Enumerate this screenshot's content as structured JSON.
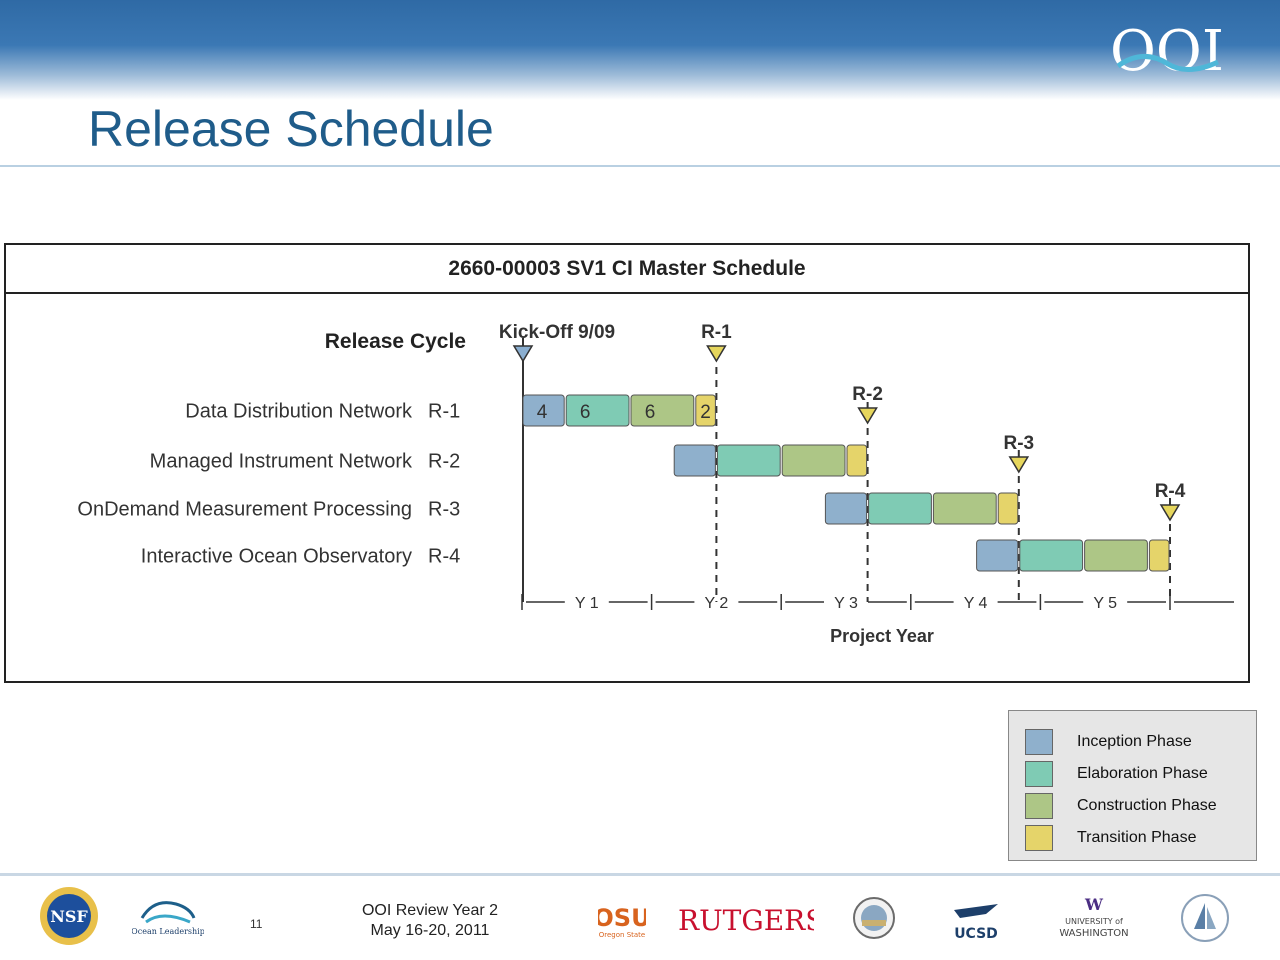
{
  "slide": {
    "title": "Release Schedule",
    "page_number": "11",
    "footer_line1": "OOI Review Year 2",
    "footer_line2": "May 16-20, 2011"
  },
  "logos": {
    "ooi": "OOI",
    "nsf": "NSF",
    "ocean_leadership": "Ocean Leadership",
    "osu": "OSU",
    "osu_sub": "Oregon State",
    "rutgers": "RUTGERS",
    "ucsd": "UCSD",
    "uw_w": "W",
    "uw_line1": "UNIVERSITY of",
    "uw_line2": "WASHINGTON"
  },
  "chart_data": {
    "type": "gantt",
    "title": "2660-00003 SV1 CI Master Schedule",
    "row_header": "Release Cycle",
    "xlabel": "Project Year",
    "years": [
      "Y 1",
      "Y 2",
      "Y 3",
      "Y 4",
      "Y 5"
    ],
    "milestones": [
      {
        "label": "Kick-Off 9/09",
        "color": "#8aaed0"
      },
      {
        "label": "R-1",
        "color": "#e6d65c"
      },
      {
        "label": "R-2",
        "color": "#e6d65c"
      },
      {
        "label": "R-3",
        "color": "#e6d65c"
      },
      {
        "label": "R-4",
        "color": "#e6d65c"
      }
    ],
    "rows": [
      {
        "name": "Data Distribution Network",
        "release": "R-1",
        "phases": [
          {
            "phase": "Inception",
            "months": 4,
            "label": "4"
          },
          {
            "phase": "Elaboration",
            "months": 6,
            "label": "6"
          },
          {
            "phase": "Construction",
            "months": 6,
            "label": "6"
          },
          {
            "phase": "Transition",
            "months": 2,
            "label": "2"
          }
        ]
      },
      {
        "name": "Managed Instrument Network",
        "release": "R-2",
        "phases": [
          {
            "phase": "Inception",
            "months": 4,
            "label": ""
          },
          {
            "phase": "Elaboration",
            "months": 6,
            "label": ""
          },
          {
            "phase": "Construction",
            "months": 6,
            "label": ""
          },
          {
            "phase": "Transition",
            "months": 2,
            "label": ""
          }
        ]
      },
      {
        "name": "OnDemand Measurement Processing",
        "release": "R-3",
        "phases": [
          {
            "phase": "Inception",
            "months": 4,
            "label": ""
          },
          {
            "phase": "Elaboration",
            "months": 6,
            "label": ""
          },
          {
            "phase": "Construction",
            "months": 6,
            "label": ""
          },
          {
            "phase": "Transition",
            "months": 2,
            "label": ""
          }
        ]
      },
      {
        "name": "Interactive Ocean Observatory",
        "release": "R-4",
        "phases": [
          {
            "phase": "Inception",
            "months": 4,
            "label": ""
          },
          {
            "phase": "Elaboration",
            "months": 6,
            "label": ""
          },
          {
            "phase": "Construction",
            "months": 6,
            "label": ""
          },
          {
            "phase": "Transition",
            "months": 2,
            "label": ""
          }
        ]
      }
    ],
    "phase_colors": {
      "Inception": "#8fb0cc",
      "Elaboration": "#7fcbb4",
      "Construction": "#adc686",
      "Transition": "#e5d46a"
    }
  },
  "legend": [
    {
      "label": "Inception Phase",
      "color": "#8fb0cc"
    },
    {
      "label": "Elaboration Phase",
      "color": "#7fcbb4"
    },
    {
      "label": "Construction Phase",
      "color": "#adc686"
    },
    {
      "label": "Transition Phase",
      "color": "#e5d46a"
    }
  ]
}
